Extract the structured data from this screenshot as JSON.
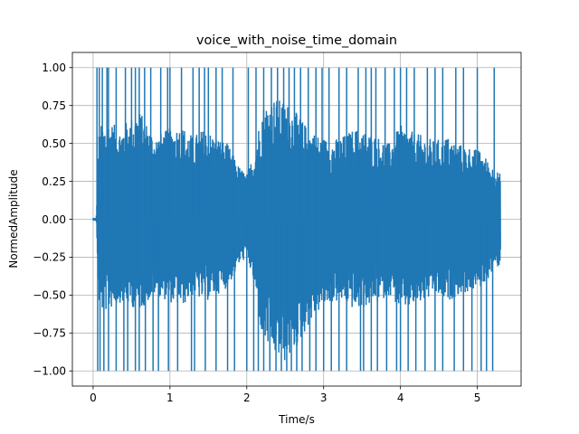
{
  "chart_data": {
    "type": "line",
    "title": "voice_with_noise_time_domain",
    "xlabel": "Time/s",
    "ylabel": "NormedAmplitude",
    "xlim": [
      -0.27,
      5.57
    ],
    "ylim": [
      -1.1,
      1.1
    ],
    "xticks": [
      0,
      1,
      2,
      3,
      4,
      5
    ],
    "xtick_labels": [
      "0",
      "1",
      "2",
      "3",
      "4",
      "5"
    ],
    "yticks": [
      -1.0,
      -0.75,
      -0.5,
      -0.25,
      0.0,
      0.25,
      0.5,
      0.75,
      1.0
    ],
    "ytick_labels": [
      "−1.00",
      "−0.75",
      "−0.50",
      "−0.25",
      "0.00",
      "0.25",
      "0.50",
      "0.75",
      "1.00"
    ],
    "grid": true,
    "series": [
      {
        "color": "#1f77b4",
        "signal_start": 0.0,
        "signal_end": 5.3,
        "envelope": {
          "t": [
            0.0,
            0.04,
            0.07,
            0.1,
            0.2,
            0.35,
            0.5,
            0.6,
            0.8,
            1.0,
            1.15,
            1.3,
            1.45,
            1.6,
            1.75,
            1.9,
            2.0,
            2.1,
            2.2,
            2.35,
            2.5,
            2.65,
            2.8,
            2.95,
            3.1,
            3.25,
            3.4,
            3.55,
            3.7,
            3.85,
            4.0,
            4.15,
            4.3,
            4.45,
            4.6,
            4.75,
            4.9,
            5.05,
            5.2,
            5.3
          ],
          "top": [
            0.01,
            0.01,
            0.55,
            0.62,
            0.65,
            0.6,
            0.68,
            0.72,
            0.55,
            0.6,
            0.62,
            0.55,
            0.6,
            0.55,
            0.5,
            0.35,
            0.3,
            0.45,
            0.75,
            0.8,
            0.78,
            0.7,
            0.6,
            0.55,
            0.52,
            0.55,
            0.6,
            0.58,
            0.55,
            0.5,
            0.62,
            0.58,
            0.55,
            0.52,
            0.55,
            0.5,
            0.48,
            0.45,
            0.35,
            0.3
          ],
          "bot": [
            -0.01,
            -0.01,
            -0.55,
            -0.62,
            -0.6,
            -0.55,
            -0.58,
            -0.6,
            -0.5,
            -0.55,
            -0.58,
            -0.5,
            -0.55,
            -0.5,
            -0.45,
            -0.3,
            -0.25,
            -0.45,
            -0.8,
            -0.9,
            -0.95,
            -0.85,
            -0.7,
            -0.6,
            -0.55,
            -0.55,
            -0.6,
            -0.58,
            -0.55,
            -0.5,
            -0.6,
            -0.58,
            -0.55,
            -0.5,
            -0.55,
            -0.5,
            -0.48,
            -0.45,
            -0.35,
            -0.3
          ]
        },
        "spikes_up": [
          0.05,
          0.08,
          0.12,
          0.18,
          0.2,
          0.3,
          0.42,
          0.5,
          0.55,
          0.6,
          0.67,
          0.75,
          0.88,
          0.97,
          1.0,
          1.15,
          1.3,
          1.38,
          1.45,
          1.5,
          1.6,
          1.68,
          1.82,
          2.02,
          2.12,
          2.22,
          2.32,
          2.4,
          2.48,
          2.55,
          2.62,
          2.7,
          2.8,
          2.9,
          2.98,
          3.07,
          3.2,
          3.3,
          3.45,
          3.55,
          3.62,
          3.68,
          3.8,
          3.92,
          4.0,
          4.08,
          4.18,
          4.35,
          4.45,
          4.55,
          4.72,
          4.82,
          5.0,
          5.22
        ],
        "spikes_down": [
          0.06,
          0.09,
          0.14,
          0.2,
          0.3,
          0.4,
          0.45,
          0.55,
          0.6,
          0.68,
          0.78,
          0.85,
          0.98,
          1.1,
          1.28,
          1.32,
          1.46,
          1.6,
          1.75,
          1.84,
          2.0,
          2.09,
          2.15,
          2.22,
          2.3,
          2.38,
          2.45,
          2.52,
          2.58,
          2.65,
          2.72,
          2.82,
          2.9,
          3.0,
          3.1,
          3.2,
          3.3,
          3.48,
          3.52,
          3.62,
          3.7,
          3.82,
          3.95,
          4.0,
          4.1,
          4.2,
          4.32,
          4.45,
          4.55,
          4.7,
          4.82,
          4.93,
          5.05,
          5.12,
          5.2
        ],
        "spike_amplitude": 1.0
      }
    ]
  }
}
